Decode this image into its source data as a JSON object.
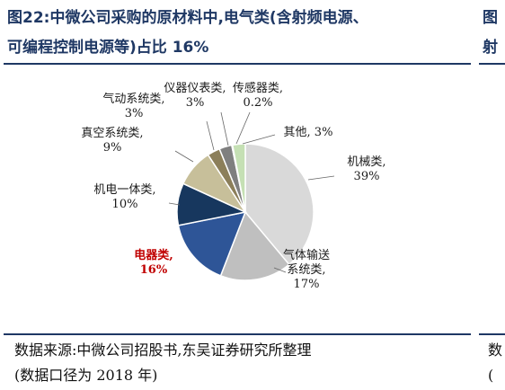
{
  "figure": {
    "title_line1": "图22:中微公司采购的原材料中,电气类(含射频电源、",
    "title_line2": "可编程控制电源等)占比 16%",
    "source_line1": "数据来源:中微公司招股书,东吴证券研究所整理",
    "source_line2": "(数据口径为 2018 年)"
  },
  "right_panel": {
    "title_line1": "图",
    "title_line2": "射",
    "source_line1": "数",
    "source_line2": "("
  },
  "chart_data": {
    "type": "pie",
    "title": "",
    "start_angle_deg": 0,
    "direction": "clockwise",
    "slices": [
      {
        "name": "机械类",
        "value": 39,
        "label_lines": [
          "机械类,",
          "39%"
        ],
        "color": "#d9d9d9",
        "highlight": false
      },
      {
        "name": "气体输送系统类",
        "value": 17,
        "label_lines": [
          "气体输送",
          "系统类,",
          "17%"
        ],
        "color": "#bfbfbf",
        "highlight": false
      },
      {
        "name": "电器类",
        "value": 16,
        "label_lines": [
          "电器类,",
          "16%"
        ],
        "color": "#2e5597",
        "highlight": true
      },
      {
        "name": "机电一体类",
        "value": 10,
        "label_lines": [
          "机电一体类,",
          "10%"
        ],
        "color": "#17375e",
        "highlight": false
      },
      {
        "name": "真空系统类",
        "value": 9,
        "label_lines": [
          "真空系统类,",
          "9%"
        ],
        "color": "#c7bf9a",
        "highlight": false
      },
      {
        "name": "气动系统类",
        "value": 3,
        "label_lines": [
          "气动系统类,",
          "3%"
        ],
        "color": "#8c7f5a",
        "highlight": false
      },
      {
        "name": "仪器仪表类",
        "value": 3,
        "label_lines": [
          "仪器仪表类,",
          "3%"
        ],
        "color": "#7f7f7f",
        "highlight": false
      },
      {
        "name": "传感器类",
        "value": 0.2,
        "label_lines": [
          "传感器类,",
          "0.2%"
        ],
        "color": "#1f3864",
        "highlight": false
      },
      {
        "name": "其他",
        "value": 3,
        "label_lines": [
          "其他, 3%"
        ],
        "color": "#c5e0b4",
        "highlight": false
      }
    ]
  }
}
